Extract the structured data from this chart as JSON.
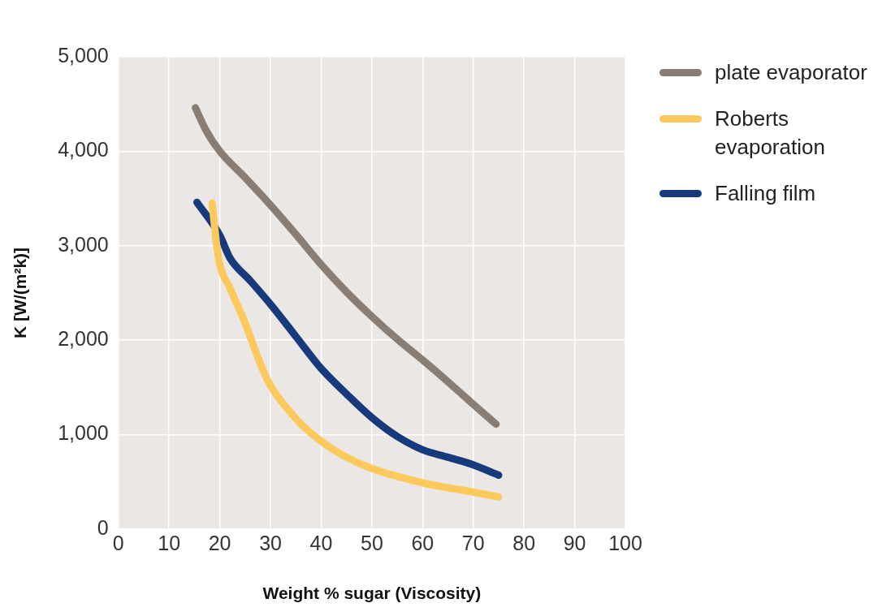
{
  "chart_data": {
    "type": "line",
    "xlabel": "Weight % sugar (Viscosity)",
    "ylabel": "K [W/(m²k)]",
    "xlim": [
      0,
      100
    ],
    "xticks": [
      0,
      10,
      20,
      30,
      40,
      50,
      60,
      70,
      80,
      90,
      100
    ],
    "ylim": [
      0,
      5000
    ],
    "yticks": [
      {
        "value": 0,
        "label": "0"
      },
      {
        "value": 1000,
        "label": "1,000"
      },
      {
        "value": 2000,
        "label": "2,000"
      },
      {
        "value": 3000,
        "label": "3,000"
      },
      {
        "value": 4000,
        "label": "4,000"
      },
      {
        "value": 5000,
        "label": "5,000"
      }
    ],
    "grid": true,
    "legend": "right",
    "marker": "none",
    "line_style": "solid",
    "series": [
      {
        "name": "plate evaporator",
        "color": "#8a7e74",
        "x": [
          15.2,
          17.2,
          20,
          25,
          30,
          35,
          40,
          45,
          50,
          55,
          60,
          65,
          70,
          74.5
        ],
        "values": [
          4460,
          4230,
          4000,
          3720,
          3430,
          3120,
          2800,
          2510,
          2250,
          2010,
          1790,
          1560,
          1320,
          1110
        ]
      },
      {
        "name": "Roberts evaporation",
        "color": "#fcc95c",
        "x": [
          18.5,
          19.4,
          20,
          22,
          25,
          28,
          30,
          35,
          40,
          45,
          50,
          60,
          70,
          75
        ],
        "values": [
          3450,
          3000,
          2800,
          2550,
          2180,
          1750,
          1520,
          1170,
          930,
          760,
          640,
          490,
          390,
          340
        ]
      },
      {
        "name": "Falling film",
        "color": "#163a7c",
        "x": [
          15.5,
          20,
          22,
          26,
          30,
          35,
          40,
          45,
          50,
          55,
          60,
          65,
          70,
          75
        ],
        "values": [
          3460,
          3110,
          2870,
          2630,
          2380,
          2040,
          1700,
          1430,
          1180,
          980,
          840,
          760,
          680,
          570
        ]
      }
    ]
  }
}
